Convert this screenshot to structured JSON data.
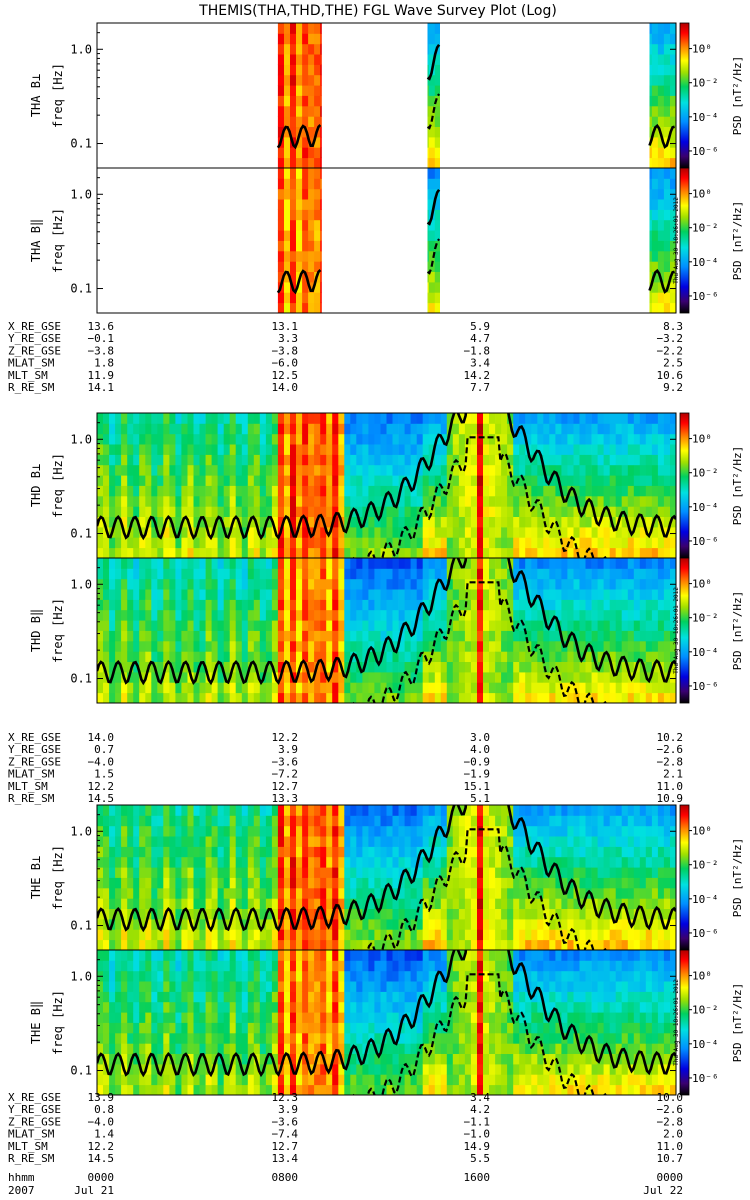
{
  "chart_data": {
    "type": "heatmap",
    "title": "THEMIS(THA,THD,THE) FGL Wave Survey Plot (Log)",
    "colorbar": {
      "label": "PSD [nT²/Hz]",
      "ticks": [
        "10⁰",
        "10⁻²",
        "10⁻⁴",
        "10⁻⁶"
      ],
      "tick_exponents": [
        0,
        -2,
        -4,
        -6
      ],
      "range_log10": [
        -7,
        1.5
      ]
    },
    "y_axis": {
      "ticks": [
        "1.0",
        "0.1"
      ],
      "tick_values": [
        1.0,
        0.1
      ],
      "range": [
        0.055,
        1.9
      ],
      "scale": "log"
    },
    "x_axis": {
      "range_hours": [
        0,
        24
      ],
      "time_labels": [
        {
          "row": "hhmm",
          "values": [
            "0000",
            "0800",
            "1600",
            "0000"
          ]
        },
        {
          "row": "2007",
          "values": [
            "Jul 21",
            "",
            "",
            "Jul 22"
          ]
        }
      ]
    },
    "timestamp": "Thu Aug 30 18:26:01 2012",
    "probes": [
      {
        "name": "THA",
        "panels": [
          {
            "ylabel": "THA B⊥",
            "yunit": "freq [Hz]"
          },
          {
            "ylabel": "THA B‖",
            "yunit": "freq [Hz]"
          }
        ],
        "data_intervals_hours": [
          [
            7.5,
            9.3
          ],
          [
            13.7,
            14.2
          ],
          [
            22.9,
            24
          ]
        ],
        "orbit": [
          {
            "label": "X_RE_GSE",
            "values": [
              "13.6",
              "13.1",
              "5.9",
              "8.3"
            ]
          },
          {
            "label": "Y_RE_GSE",
            "values": [
              "−0.1",
              "3.3",
              "4.7",
              "−3.2"
            ]
          },
          {
            "label": "Z_RE_GSE",
            "values": [
              "−3.8",
              "−3.8",
              "−1.8",
              "−2.2"
            ]
          },
          {
            "label": "MLAT_SM",
            "values": [
              "1.8",
              "−6.0",
              "3.4",
              "2.5"
            ]
          },
          {
            "label": "MLT_SM",
            "values": [
              "11.9",
              "12.5",
              "14.2",
              "10.6"
            ]
          },
          {
            "label": "R_RE_SM",
            "values": [
              "14.1",
              "14.0",
              "7.7",
              "9.2"
            ]
          }
        ]
      },
      {
        "name": "THD",
        "panels": [
          {
            "ylabel": "THD B⊥",
            "yunit": "freq [Hz]"
          },
          {
            "ylabel": "THD B‖",
            "yunit": "freq [Hz]"
          }
        ],
        "data_intervals_hours": [
          [
            0,
            24
          ]
        ],
        "orbit": [
          {
            "label": "X_RE_GSE",
            "values": [
              "14.0",
              "12.2",
              "3.0",
              "10.2"
            ]
          },
          {
            "label": "Y_RE_GSE",
            "values": [
              "0.7",
              "3.9",
              "4.0",
              "−2.6"
            ]
          },
          {
            "label": "Z_RE_GSE",
            "values": [
              "−4.0",
              "−3.6",
              "−0.9",
              "−2.8"
            ]
          },
          {
            "label": "MLAT_SM",
            "values": [
              "1.5",
              "−7.2",
              "−1.9",
              "2.1"
            ]
          },
          {
            "label": "MLT_SM",
            "values": [
              "12.2",
              "12.7",
              "15.1",
              "11.0"
            ]
          },
          {
            "label": "R_RE_SM",
            "values": [
              "14.5",
              "13.3",
              "5.1",
              "10.9"
            ]
          }
        ]
      },
      {
        "name": "THE",
        "panels": [
          {
            "ylabel": "THE B⊥",
            "yunit": "freq [Hz]"
          },
          {
            "ylabel": "THE B‖",
            "yunit": "freq [Hz]"
          }
        ],
        "data_intervals_hours": [
          [
            0,
            24
          ]
        ],
        "orbit": [
          {
            "label": "X_RE_GSE",
            "values": [
              "13.9",
              "12.3",
              "3.4",
              "10.0"
            ]
          },
          {
            "label": "Y_RE_GSE",
            "values": [
              "0.8",
              "3.9",
              "4.2",
              "−2.6"
            ]
          },
          {
            "label": "Z_RE_GSE",
            "values": [
              "−4.0",
              "−3.6",
              "−1.1",
              "−2.8"
            ]
          },
          {
            "label": "MLAT_SM",
            "values": [
              "1.4",
              "−7.4",
              "−1.0",
              "2.0"
            ]
          },
          {
            "label": "MLT_SM",
            "values": [
              "12.2",
              "12.7",
              "14.9",
              "11.0"
            ]
          },
          {
            "label": "R_RE_SM",
            "values": [
              "14.5",
              "13.4",
              "5.5",
              "10.7"
            ]
          }
        ]
      }
    ]
  }
}
